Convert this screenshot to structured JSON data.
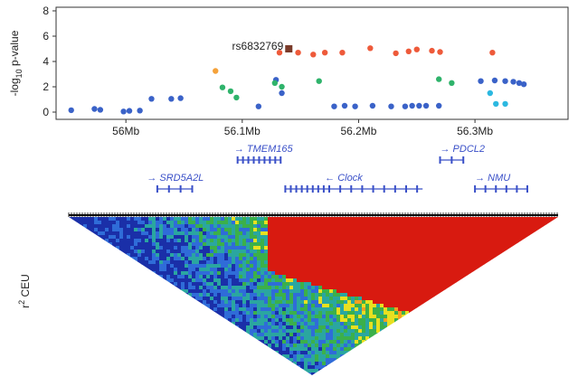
{
  "chart_data": [
    {
      "type": "scatter",
      "ylabel": "-log10 p-value",
      "ylabel_main": "-log",
      "ylabel_sub": "10",
      "ylabel_tail": " p-value",
      "ylim": [
        0,
        8
      ],
      "yticks": [
        "0",
        "2",
        "4",
        "6",
        "8"
      ],
      "ytick_values": [
        0,
        2,
        4,
        6,
        8
      ],
      "xlim": [
        55.94,
        56.38
      ],
      "xticks": [
        "56Mb",
        "56.1Mb",
        "56.2Mb",
        "56.3Mb"
      ],
      "xtick_values": [
        56.0,
        56.1,
        56.2,
        56.3
      ],
      "grid": false,
      "annotation": {
        "text": "rs6832769",
        "x": 56.14,
        "y": 5.0
      },
      "colors": {
        "blue": "#3a62c8",
        "cyan": "#2cb8e0",
        "green": "#2fb36b",
        "orange": "#f5a23a",
        "red": "#ee5a3a",
        "top": "#7a3b2a"
      },
      "series": [
        {
          "color_key": "blue",
          "points": [
            [
              55.953,
              0.15
            ],
            [
              55.973,
              0.25
            ],
            [
              55.978,
              0.18
            ],
            [
              55.998,
              0.05
            ],
            [
              56.003,
              0.1
            ],
            [
              56.012,
              0.12
            ],
            [
              56.022,
              1.05
            ],
            [
              56.039,
              1.05
            ],
            [
              56.047,
              1.1
            ],
            [
              56.114,
              0.45
            ],
            [
              56.129,
              2.55
            ],
            [
              56.134,
              1.5
            ],
            [
              56.179,
              0.45
            ],
            [
              56.188,
              0.5
            ],
            [
              56.197,
              0.45
            ],
            [
              56.212,
              0.5
            ],
            [
              56.228,
              0.45
            ],
            [
              56.24,
              0.45
            ],
            [
              56.246,
              0.5
            ],
            [
              56.252,
              0.5
            ],
            [
              56.258,
              0.5
            ],
            [
              56.269,
              0.5
            ],
            [
              56.305,
              2.45
            ],
            [
              56.317,
              2.5
            ],
            [
              56.326,
              2.45
            ],
            [
              56.333,
              2.4
            ],
            [
              56.338,
              2.3
            ],
            [
              56.342,
              2.2
            ]
          ]
        },
        {
          "color_key": "cyan",
          "points": [
            [
              56.313,
              1.5
            ],
            [
              56.318,
              0.65
            ],
            [
              56.326,
              0.65
            ]
          ]
        },
        {
          "color_key": "green",
          "points": [
            [
              56.083,
              1.95
            ],
            [
              56.09,
              1.65
            ],
            [
              56.095,
              1.15
            ],
            [
              56.128,
              2.3
            ],
            [
              56.134,
              2.0
            ],
            [
              56.166,
              2.45
            ],
            [
              56.269,
              2.6
            ],
            [
              56.28,
              2.3
            ]
          ]
        },
        {
          "color_key": "orange",
          "points": [
            [
              56.077,
              3.25
            ]
          ]
        },
        {
          "color_key": "red",
          "points": [
            [
              56.132,
              4.7
            ],
            [
              56.148,
              4.7
            ],
            [
              56.161,
              4.55
            ],
            [
              56.171,
              4.7
            ],
            [
              56.186,
              4.7
            ],
            [
              56.21,
              5.05
            ],
            [
              56.232,
              4.65
            ],
            [
              56.243,
              4.8
            ],
            [
              56.25,
              4.95
            ],
            [
              56.263,
              4.85
            ],
            [
              56.27,
              4.75
            ],
            [
              56.315,
              4.7
            ]
          ]
        },
        {
          "color_key": "top",
          "points": [
            [
              56.14,
              5.0
            ]
          ]
        }
      ]
    },
    {
      "type": "gene_track",
      "genes": [
        {
          "name": "SRD5A2L",
          "label_start": 56.045,
          "line_start": 56.027,
          "line_end": 56.057,
          "tss_x": 56.018,
          "tss_label_x": 56.045,
          "row": 1
        },
        {
          "name": "TMEM165",
          "label_start": 56.098,
          "line_start": 56.096,
          "line_end": 56.133,
          "tss_x": 56.093,
          "tss_label_x": 56.098,
          "row": 0
        },
        {
          "name": "Clock",
          "label_start": 56.185,
          "line_start": 56.137,
          "line_end": 56.255,
          "tss_x": 56.171,
          "tss_label_x": 56.18,
          "row": 1
        },
        {
          "name": "PDCL2",
          "label_start": 56.278,
          "line_start": 56.27,
          "line_end": 56.29,
          "tss_x": 56.27,
          "tss_label_x": 56.278,
          "row": 0
        },
        {
          "name": "NMU",
          "label_start": 56.315,
          "line_start": 56.3,
          "line_end": 56.345,
          "tss_x": 56.3,
          "tss_label_x": 56.315,
          "row": 1
        }
      ],
      "tss_arrow_rightward": "→",
      "tss_arrow_leftward": "←"
    },
    {
      "type": "heatmap",
      "ylabel": "r2 CEU",
      "ylabel_main": "r",
      "ylabel_sup": "2",
      "ylabel_tail": " CEU",
      "colors": [
        "#1a2fa8",
        "#2f6cd8",
        "#2aa6a0",
        "#3bb04a",
        "#e8e020",
        "#f5a020",
        "#e8301e",
        "#d81a10"
      ]
    }
  ]
}
